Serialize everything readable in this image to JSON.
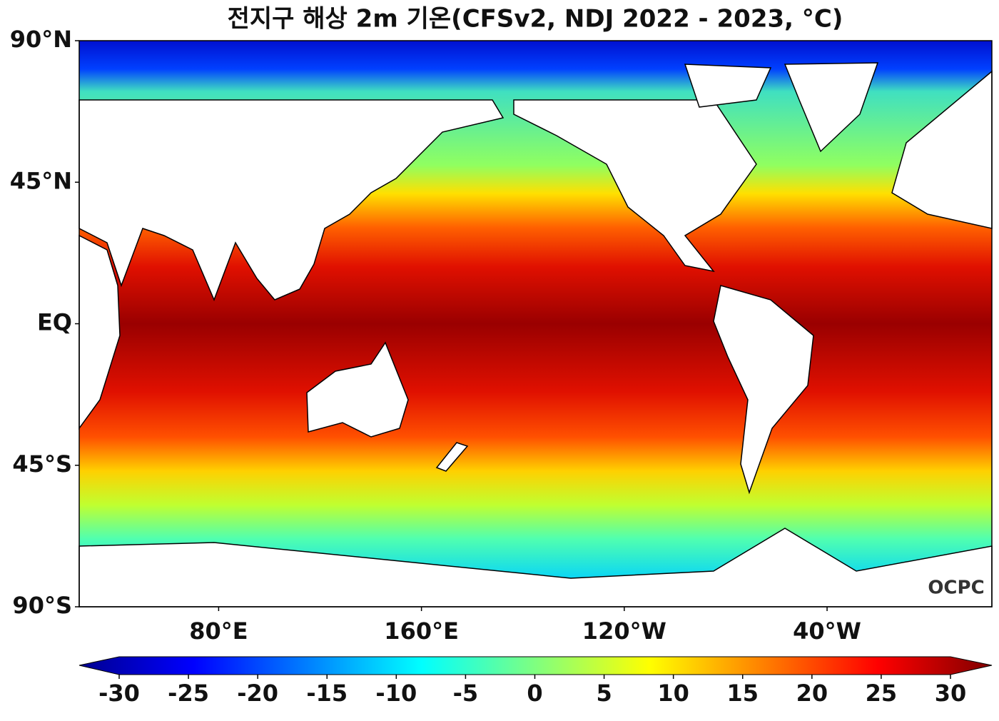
{
  "map": {
    "title": "전지구 해상 2m 기온(CFSv2, NDJ 2022 - 2023, °C)",
    "xlim": [
      25,
      385
    ],
    "ylim": [
      -90,
      90
    ],
    "lat_ticks": [
      {
        "value": 90,
        "label": "90°N"
      },
      {
        "value": 45,
        "label": "45°N"
      },
      {
        "value": 0,
        "label": "EQ"
      },
      {
        "value": -45,
        "label": "45°S"
      },
      {
        "value": -90,
        "label": "90°S"
      }
    ],
    "lon_ticks": [
      {
        "value": 80,
        "label": "80°E"
      },
      {
        "value": 160,
        "label": "160°E"
      },
      {
        "value": 240,
        "label": "120°W"
      },
      {
        "value": 320,
        "label": "40°W"
      }
    ],
    "colorbar": {
      "lim": [
        -30,
        30
      ],
      "ticks": [
        -30,
        -25,
        -20,
        -15,
        -10,
        -5,
        0,
        5,
        10,
        15,
        20,
        25,
        30
      ]
    },
    "logo": "OCPC"
  }
}
